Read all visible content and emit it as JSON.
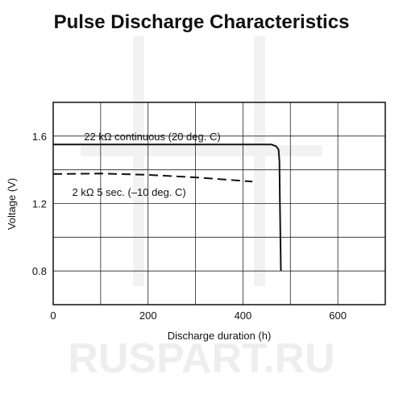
{
  "watermark": {
    "text": "RUSPART.RU",
    "color": "#eeeeee"
  },
  "chart_data": {
    "type": "line",
    "title": "Pulse Discharge Characteristics",
    "xlabel": "Discharge duration (h)",
    "ylabel": "Voltage (V)",
    "xlim": [
      0,
      700
    ],
    "ylim": [
      0.6,
      1.8
    ],
    "xticks": [
      0,
      200,
      400,
      600
    ],
    "yticks": [
      0.8,
      1.2,
      1.6
    ],
    "grid": true,
    "series": [
      {
        "name": "22 kΩ continuous (20 deg. C)",
        "style": "solid",
        "color": "#111111",
        "points": [
          [
            0,
            1.55
          ],
          [
            400,
            1.55
          ],
          [
            460,
            1.55
          ],
          [
            470,
            1.54
          ],
          [
            475,
            1.52
          ],
          [
            477,
            1.45
          ],
          [
            478,
            1.2
          ],
          [
            480,
            0.8
          ]
        ]
      },
      {
        "name": "2 kΩ 5 sec. (–10 deg. C)",
        "style": "dashed",
        "color": "#111111",
        "points": [
          [
            0,
            1.375
          ],
          [
            100,
            1.378
          ],
          [
            200,
            1.37
          ],
          [
            300,
            1.355
          ],
          [
            350,
            1.345
          ],
          [
            420,
            1.33
          ]
        ]
      }
    ],
    "annotations": [
      {
        "text": "22 kΩ continuous (20 deg. C)",
        "x": 65,
        "y": 1.6
      },
      {
        "text": "2 kΩ 5 sec. (–10 deg. C)",
        "x": 40,
        "y": 1.27
      }
    ]
  }
}
